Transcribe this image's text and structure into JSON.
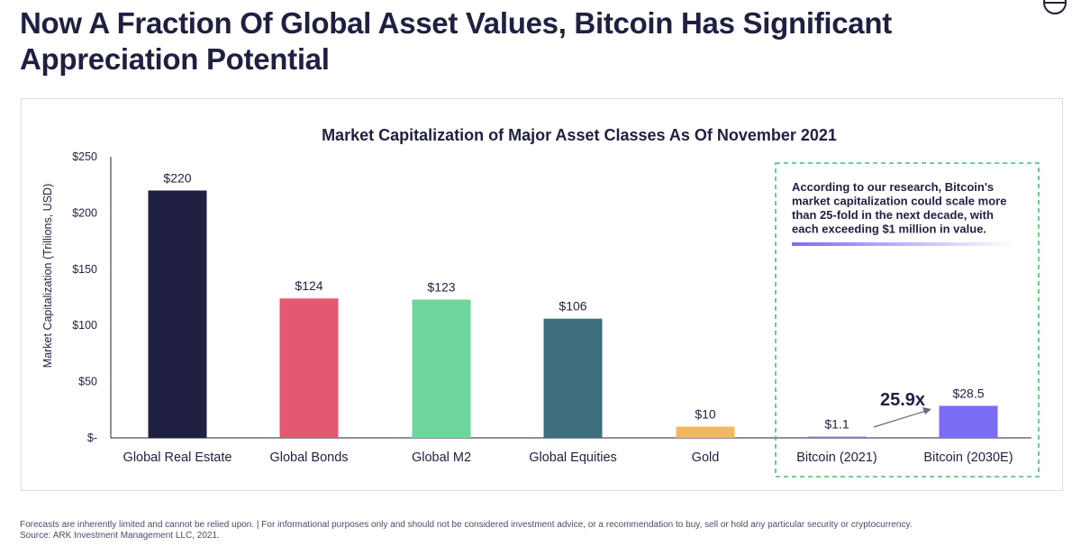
{
  "headline": "Now A Fraction Of Global Asset Values, Bitcoin Has Significant Appreciation Potential",
  "chart_data": {
    "type": "bar",
    "title": "Market Capitalization of Major Asset Classes As Of November 2021",
    "ylabel": "Market Capitalization (Trillions, USD)",
    "xlabel": "",
    "ylim": [
      0,
      250
    ],
    "yticks": [
      0,
      50,
      100,
      150,
      200,
      250
    ],
    "ytick_labels": [
      "$-",
      "$50",
      "$100",
      "$150",
      "$200",
      "$250"
    ],
    "categories": [
      "Global Real Estate",
      "Global Bonds",
      "Global M2",
      "Global Equities",
      "Gold",
      "Bitcoin (2021)",
      "Bitcoin (2030E)"
    ],
    "values": [
      220,
      124,
      123,
      106,
      10,
      1.1,
      28.5
    ],
    "data_labels": [
      "$220",
      "$124",
      "$123",
      "$106",
      "$10",
      "$1.1",
      "$28.5"
    ],
    "bar_colors": [
      "#1f2041",
      "#e45870",
      "#6ed69a",
      "#406f7e",
      "#f2b95c",
      "#7b6cf6",
      "#7b6cf6"
    ],
    "annotation": {
      "text": "According to our research, Bitcoin's market capitalization could scale more than 25-fold in the next decade, with each exceeding $1 million in value.",
      "multiplier_label": "25.9x"
    },
    "grid": false,
    "legend": "none"
  },
  "colors": {
    "text": "#1f2041",
    "highlight_border": "#3ec46d",
    "accent_purple": "#7b6cf6"
  },
  "footnote": {
    "line1": "Forecasts are inherently limited and cannot be relied upon. | For informational purposes only and should not be considered investment advice, or a recommendation to buy, sell or hold any particular security or cryptocurrency.",
    "line2": "Source: ARK Investment Management LLC, 2021."
  }
}
